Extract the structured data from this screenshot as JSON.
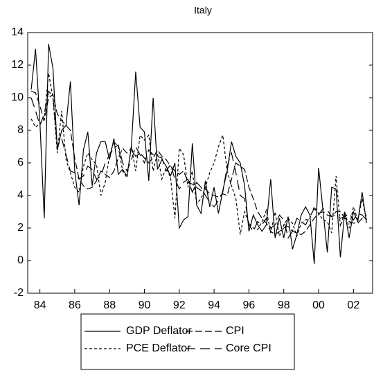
{
  "chart_data": {
    "type": "line",
    "title": "Italy",
    "x": [
      1983.5,
      1983.75,
      1984,
      1984.25,
      1984.5,
      1984.75,
      1985,
      1985.25,
      1985.5,
      1985.75,
      1986,
      1986.25,
      1986.5,
      1986.75,
      1987,
      1987.25,
      1987.5,
      1987.75,
      1988,
      1988.25,
      1988.5,
      1988.75,
      1989,
      1989.25,
      1989.5,
      1989.75,
      1990,
      1990.25,
      1990.5,
      1990.75,
      1991,
      1991.25,
      1991.5,
      1991.75,
      1992,
      1992.25,
      1992.5,
      1992.75,
      1993,
      1993.25,
      1993.5,
      1993.75,
      1994,
      1994.25,
      1994.5,
      1994.75,
      1995,
      1995.25,
      1995.5,
      1995.75,
      1996,
      1996.25,
      1996.5,
      1996.75,
      1997,
      1997.25,
      1997.5,
      1997.75,
      1998,
      1998.25,
      1998.5,
      1998.75,
      1999,
      1999.25,
      1999.5,
      1999.75,
      2000,
      2000.25,
      2000.5,
      2000.75,
      2001,
      2001.25,
      2001.5,
      2001.75,
      2002,
      2002.25,
      2002.5,
      2002.75
    ],
    "series": [
      {
        "name": "GDP Deflator",
        "color": "#000000",
        "values": [
          10.5,
          13.0,
          8.5,
          2.6,
          13.3,
          11.8,
          6.8,
          8.0,
          8.3,
          11.0,
          5.5,
          3.4,
          6.8,
          7.9,
          4.6,
          6.6,
          7.3,
          7.3,
          6.2,
          7.5,
          5.3,
          5.6,
          5.2,
          7.0,
          11.6,
          8.2,
          7.9,
          4.9,
          10.0,
          5.6,
          6.2,
          5.8,
          5.2,
          6.0,
          2.0,
          2.5,
          2.7,
          7.2,
          3.4,
          2.9,
          4.9,
          3.3,
          4.5,
          2.9,
          4.3,
          5.5,
          7.3,
          6.4,
          6.0,
          4.6,
          1.8,
          2.8,
          2.2,
          1.8,
          2.2,
          5.0,
          1.4,
          2.6,
          1.4,
          2.7,
          0.7,
          1.6,
          2.8,
          3.3,
          2.8,
          -0.2,
          5.7,
          3.1,
          0.5,
          4.5,
          4.4,
          0.2,
          3.0,
          1.4,
          3.0,
          2.4,
          4.2,
          2.3
        ]
      },
      {
        "name": "CPI",
        "color": "#000000",
        "values": [
          10.4,
          10.3,
          9.5,
          8.6,
          10.0,
          10.2,
          9.0,
          8.6,
          8.3,
          8.0,
          6.3,
          5.0,
          4.6,
          4.4,
          4.5,
          4.9,
          5.5,
          5.3,
          5.1,
          5.5,
          6.3,
          6.9,
          6.6,
          6.9,
          6.4,
          6.6,
          6.3,
          6.0,
          6.3,
          6.8,
          6.4,
          6.2,
          5.8,
          5.5,
          5.3,
          5.5,
          4.8,
          4.7,
          4.5,
          4.3,
          4.4,
          4.1,
          4.0,
          3.9,
          4.1,
          4.0,
          5.0,
          6.0,
          5.8,
          5.6,
          4.5,
          3.8,
          3.0,
          2.6,
          2.3,
          1.8,
          1.6,
          1.8,
          2.0,
          2.1,
          1.8,
          1.7,
          1.6,
          1.8,
          2.2,
          2.6,
          2.9,
          3.0,
          2.8,
          2.7,
          3.0,
          3.0,
          2.6,
          2.4,
          2.3,
          2.3,
          2.6,
          2.8
        ]
      },
      {
        "name": "PCE Deflator",
        "color": "#000000",
        "values": [
          8.7,
          8.2,
          8.4,
          8.7,
          11.5,
          10.0,
          6.6,
          9.2,
          6.2,
          5.4,
          4.5,
          4.2,
          5.8,
          6.6,
          6.2,
          5.9,
          4.0,
          4.8,
          6.5,
          7.3,
          7.0,
          5.5,
          5.1,
          7.0,
          5.5,
          7.7,
          7.4,
          7.7,
          5.5,
          6.6,
          5.0,
          5.7,
          5.1,
          2.6,
          6.9,
          6.5,
          4.5,
          5.5,
          3.5,
          3.8,
          4.5,
          5.4,
          6.0,
          7.0,
          7.7,
          5.5,
          4.6,
          3.8,
          1.6,
          3.0,
          2.3,
          2.0,
          1.9,
          2.4,
          3.1,
          1.7,
          3.0,
          1.5,
          2.2,
          2.6,
          2.3,
          1.5,
          2.3,
          2.5,
          2.6,
          3.3,
          2.9,
          2.5,
          2.4,
          1.7,
          5.2,
          2.1,
          3.0,
          2.0,
          3.3,
          2.5,
          3.8,
          2.5
        ]
      },
      {
        "name": "Core CPI",
        "color": "#000000",
        "values": [
          10.0,
          9.2,
          8.3,
          9.0,
          10.4,
          10.1,
          7.0,
          7.5,
          6.5,
          5.5,
          5.4,
          5.0,
          5.2,
          5.8,
          5.6,
          5.0,
          5.2,
          6.0,
          6.5,
          6.9,
          7.1,
          6.0,
          5.5,
          6.2,
          7.0,
          6.5,
          6.0,
          6.8,
          6.5,
          6.4,
          6.3,
          5.5,
          5.9,
          5.0,
          4.4,
          4.8,
          5.0,
          4.2,
          4.8,
          4.5,
          4.0,
          3.6,
          3.3,
          3.7,
          4.2,
          5.8,
          6.6,
          5.4,
          4.0,
          3.8,
          2.2,
          1.8,
          2.4,
          2.2,
          2.6,
          2.0,
          2.2,
          2.8,
          2.5,
          1.4,
          1.8,
          2.6,
          2.4,
          2.2,
          2.7,
          3.2,
          2.8,
          3.2,
          3.1,
          2.7,
          2.8,
          2.6,
          2.7,
          2.9,
          2.5,
          2.9,
          2.8,
          2.5
        ]
      }
    ],
    "xlim": [
      1983.3,
      2003.1
    ],
    "xticks": [
      {
        "value": 1984,
        "label": "84"
      },
      {
        "value": 1986,
        "label": "86"
      },
      {
        "value": 1988,
        "label": "88"
      },
      {
        "value": 1990,
        "label": "90"
      },
      {
        "value": 1992,
        "label": "92"
      },
      {
        "value": 1994,
        "label": "94"
      },
      {
        "value": 1996,
        "label": "96"
      },
      {
        "value": 1998,
        "label": "98"
      },
      {
        "value": 2000,
        "label": "00"
      },
      {
        "value": 2002,
        "label": "02"
      }
    ],
    "ylim": [
      -2,
      14
    ],
    "yticks": [
      -2,
      0,
      2,
      4,
      6,
      8,
      10,
      12,
      14
    ],
    "grid": false,
    "legend": "bottom"
  }
}
